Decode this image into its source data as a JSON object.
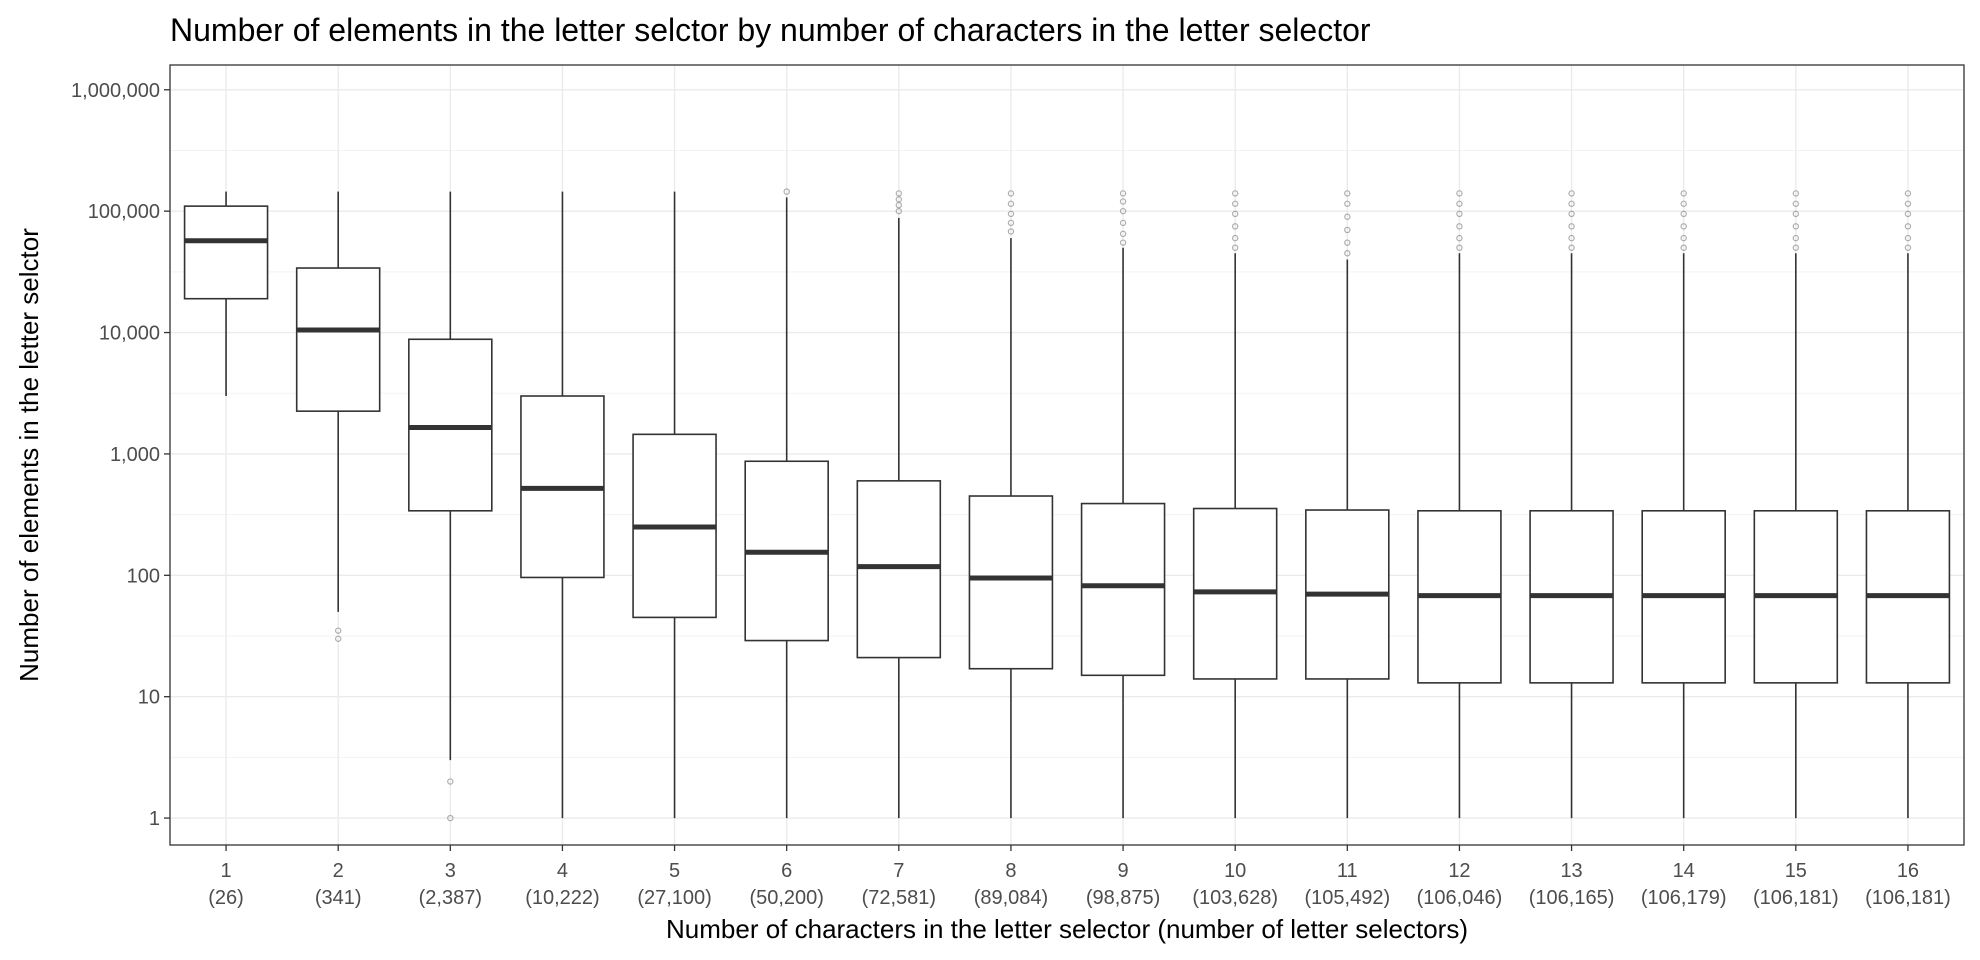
{
  "chart_data": {
    "type": "boxplot",
    "title": "Number of elements in the letter selctor by number of characters in the letter selector",
    "xlabel": "Number of characters in the letter selector (number of letter selectors)",
    "ylabel": "Number of elements in the letter selctor",
    "y_scale": "log10",
    "ylim": [
      0.6,
      1600000
    ],
    "y_ticks": [
      {
        "value": 1,
        "label": "1"
      },
      {
        "value": 10,
        "label": "10"
      },
      {
        "value": 100,
        "label": "100"
      },
      {
        "value": 1000,
        "label": "1,000"
      },
      {
        "value": 10000,
        "label": "10,000"
      },
      {
        "value": 100000,
        "label": "100,000"
      },
      {
        "value": 1000000,
        "label": "1,000,000"
      }
    ],
    "grid": true,
    "categories": [
      "1",
      "2",
      "3",
      "4",
      "5",
      "6",
      "7",
      "8",
      "9",
      "10",
      "11",
      "12",
      "13",
      "14",
      "15",
      "16"
    ],
    "category_counts": [
      "(26)",
      "(341)",
      "(2,387)",
      "(10,222)",
      "(27,100)",
      "(50,200)",
      "(72,581)",
      "(89,084)",
      "(98,875)",
      "(103,628)",
      "(105,492)",
      "(106,046)",
      "(106,165)",
      "(106,179)",
      "(106,181)",
      "(106,181)"
    ],
    "boxes": [
      {
        "min": 3000,
        "q1": 19000,
        "median": 57000,
        "q3": 110000,
        "max": 145000,
        "outliers": []
      },
      {
        "min": 50,
        "q1": 2250,
        "median": 10500,
        "q3": 34000,
        "max": 145000,
        "outliers": [
          30,
          35
        ]
      },
      {
        "min": 3,
        "q1": 340,
        "median": 1650,
        "q3": 8800,
        "max": 145000,
        "outliers": [
          1,
          2
        ]
      },
      {
        "min": 1,
        "q1": 96,
        "median": 520,
        "q3": 3000,
        "max": 145000,
        "outliers": []
      },
      {
        "min": 1,
        "q1": 45,
        "median": 250,
        "q3": 1450,
        "max": 145000,
        "outliers": []
      },
      {
        "min": 1,
        "q1": 29,
        "median": 155,
        "q3": 870,
        "max": 130000,
        "outliers": [
          145000
        ]
      },
      {
        "min": 1,
        "q1": 21,
        "median": 118,
        "q3": 600,
        "max": 88000,
        "outliers": [
          100000,
          112000,
          125000,
          140000
        ]
      },
      {
        "min": 1,
        "q1": 17,
        "median": 95,
        "q3": 450,
        "max": 60000,
        "outliers": [
          68000,
          80000,
          95000,
          115000,
          140000
        ]
      },
      {
        "min": 1,
        "q1": 15,
        "median": 82,
        "q3": 390,
        "max": 50000,
        "outliers": [
          55000,
          65000,
          80000,
          100000,
          120000,
          140000
        ]
      },
      {
        "min": 1,
        "q1": 14,
        "median": 73,
        "q3": 355,
        "max": 45000,
        "outliers": [
          50000,
          60000,
          75000,
          95000,
          115000,
          140000
        ]
      },
      {
        "min": 1,
        "q1": 14,
        "median": 70,
        "q3": 345,
        "max": 40000,
        "outliers": [
          45000,
          55000,
          70000,
          90000,
          115000,
          140000
        ]
      },
      {
        "min": 1,
        "q1": 13,
        "median": 68,
        "q3": 340,
        "max": 45000,
        "outliers": [
          50000,
          60000,
          75000,
          95000,
          115000,
          140000
        ]
      },
      {
        "min": 1,
        "q1": 13,
        "median": 68,
        "q3": 340,
        "max": 45000,
        "outliers": [
          50000,
          60000,
          75000,
          95000,
          115000,
          140000
        ]
      },
      {
        "min": 1,
        "q1": 13,
        "median": 68,
        "q3": 340,
        "max": 45000,
        "outliers": [
          50000,
          60000,
          75000,
          95000,
          115000,
          140000
        ]
      },
      {
        "min": 1,
        "q1": 13,
        "median": 68,
        "q3": 340,
        "max": 45000,
        "outliers": [
          50000,
          60000,
          75000,
          95000,
          115000,
          140000
        ]
      },
      {
        "min": 1,
        "q1": 13,
        "median": 68,
        "q3": 340,
        "max": 45000,
        "outliers": [
          50000,
          60000,
          75000,
          95000,
          115000,
          140000
        ]
      }
    ]
  }
}
